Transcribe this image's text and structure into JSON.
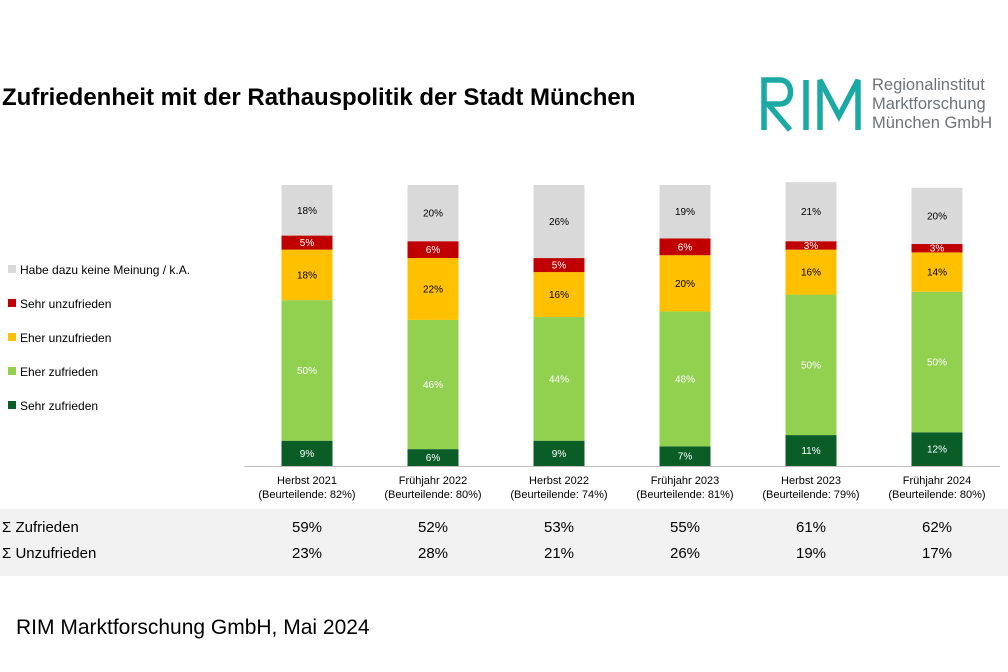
{
  "title": "Zufriedenheit mit der Rathauspolitik der Stadt München",
  "logo": {
    "mark": "RIM",
    "lines": [
      "Regionalinstitut",
      "Marktforschung",
      "München GmbH"
    ],
    "color": "#1aa9a5"
  },
  "colors": {
    "keine_meinung": "#d9d9d9",
    "sehr_unzufrieden": "#c00000",
    "eher_unzufrieden": "#ffc000",
    "eher_zufrieden": "#92d050",
    "sehr_zufrieden": "#0b5d28"
  },
  "chart_data": {
    "type": "bar",
    "stacked": true,
    "percent": true,
    "categories": [
      [
        "Herbst 2021",
        "(Beurteilende: 82%)"
      ],
      [
        "Frühjahr 2022",
        "(Beurteilende: 80%)"
      ],
      [
        "Herbst 2022",
        "(Beurteilende: 74%)"
      ],
      [
        "Frühjahr 2023",
        "(Beurteilende: 81%)"
      ],
      [
        "Herbst 2023",
        "(Beurteilende: 79%)"
      ],
      [
        "Frühjahr 2024",
        "(Beurteilende: 80%)"
      ]
    ],
    "series": [
      {
        "name": "Sehr zufrieden",
        "key": "sehr_zufrieden",
        "values": [
          9,
          6,
          9,
          7,
          11,
          12
        ],
        "labels": [
          "9%",
          "6%",
          "9%",
          "7%",
          "11%",
          "12%"
        ],
        "label_color": "#ffffff"
      },
      {
        "name": "Eher zufrieden",
        "key": "eher_zufrieden",
        "values": [
          50,
          46,
          44,
          48,
          50,
          50
        ],
        "labels": [
          "50%",
          "46%",
          "44%",
          "48%",
          "50%",
          "50%"
        ],
        "label_color": "#ffffff"
      },
      {
        "name": "Eher unzufrieden",
        "key": "eher_unzufrieden",
        "values": [
          18,
          22,
          16,
          20,
          16,
          14
        ],
        "labels": [
          "18%",
          "22%",
          "16%",
          "20%",
          "16%",
          "14%"
        ],
        "label_color": "#000000"
      },
      {
        "name": "Sehr unzufrieden",
        "key": "sehr_unzufrieden",
        "values": [
          5,
          6,
          5,
          6,
          3,
          3
        ],
        "labels": [
          "5%",
          "6%",
          "5%",
          "6%",
          "3%",
          "3%"
        ],
        "label_color": "#ffffff"
      },
      {
        "name": "Habe dazu keine Meinung / k.A.",
        "key": "keine_meinung",
        "values": [
          18,
          20,
          26,
          19,
          21,
          20
        ],
        "labels": [
          "18%",
          "20%",
          "26%",
          "19%",
          "21%",
          "20%"
        ],
        "label_color": "#000000"
      }
    ],
    "legend_position": "left",
    "grid": false
  },
  "legend": [
    {
      "label": "Habe dazu keine Meinung / k.A.",
      "key": "keine_meinung"
    },
    {
      "label": "Sehr unzufrieden",
      "key": "sehr_unzufrieden"
    },
    {
      "label": "Eher unzufrieden",
      "key": "eher_unzufrieden"
    },
    {
      "label": "Eher zufrieden",
      "key": "eher_zufrieden"
    },
    {
      "label": "Sehr zufrieden",
      "key": "sehr_zufrieden"
    }
  ],
  "summary": [
    {
      "label": "Σ Zufrieden",
      "values": [
        "59%",
        "52%",
        "53%",
        "55%",
        "61%",
        "62%"
      ]
    },
    {
      "label": "Σ Unzufrieden",
      "values": [
        "23%",
        "28%",
        "21%",
        "26%",
        "19%",
        "17%"
      ]
    }
  ],
  "footer": "RIM Marktforschung GmbH, Mai 2024"
}
